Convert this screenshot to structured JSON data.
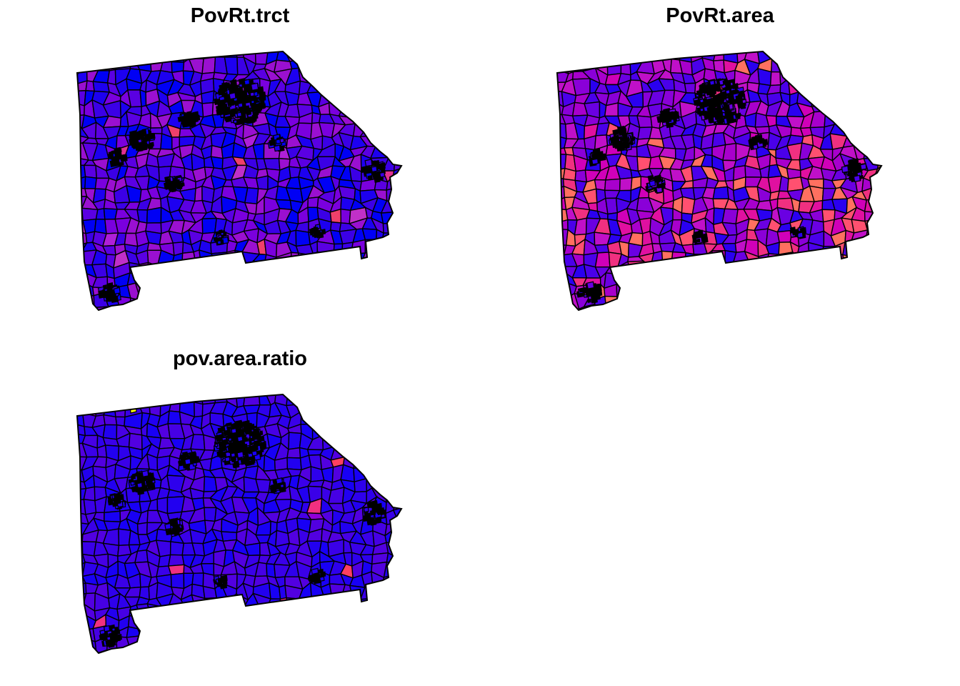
{
  "maps": [
    {
      "title": "PovRt.trct",
      "palette": [
        "#0000f5",
        "#1d00f0",
        "#3b00e6",
        "#5a00e2",
        "#7a00de",
        "#9a10d0"
      ],
      "hot": [
        "#b020d8",
        "#c030c8",
        "#e03090",
        "#f0406a"
      ],
      "hot_rate": 0.03
    },
    {
      "title": "PovRt.area",
      "palette": [
        "#2a00f0",
        "#4a00ea",
        "#6a00e2",
        "#8a00d8",
        "#a800cc",
        "#c010c8"
      ],
      "hot": [
        "#d000b8",
        "#e010a0",
        "#f03080",
        "#ff5070",
        "#ff7060"
      ],
      "hot_rate": 0.16
    },
    {
      "title": "pov.area.ratio",
      "palette": [
        "#1800f5",
        "#2200f0",
        "#2e00ec",
        "#3a00e8",
        "#4600e4",
        "#5200e0"
      ],
      "hot": [
        "#9000d8",
        "#c000c8",
        "#f03080",
        "#ff4060"
      ],
      "hot_rate": 0.015,
      "highlight": "#ffff00"
    }
  ]
}
